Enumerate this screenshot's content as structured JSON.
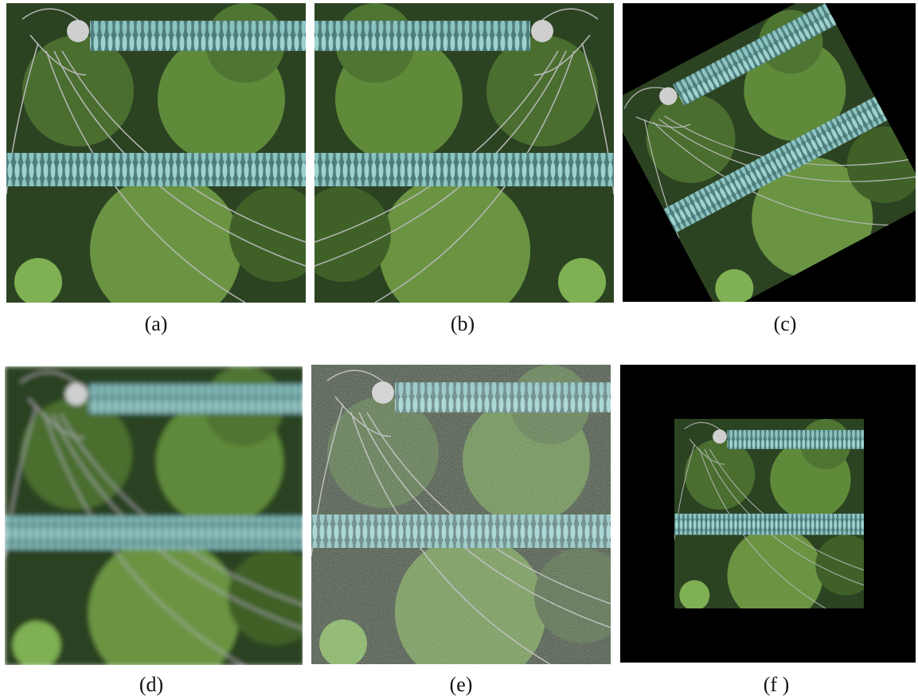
{
  "panels": [
    {
      "label": "(a)"
    },
    {
      "label": "(b)"
    },
    {
      "label": "(c)"
    },
    {
      "label": "(d)"
    },
    {
      "label": "(e)"
    },
    {
      "label": "(f )"
    }
  ]
}
